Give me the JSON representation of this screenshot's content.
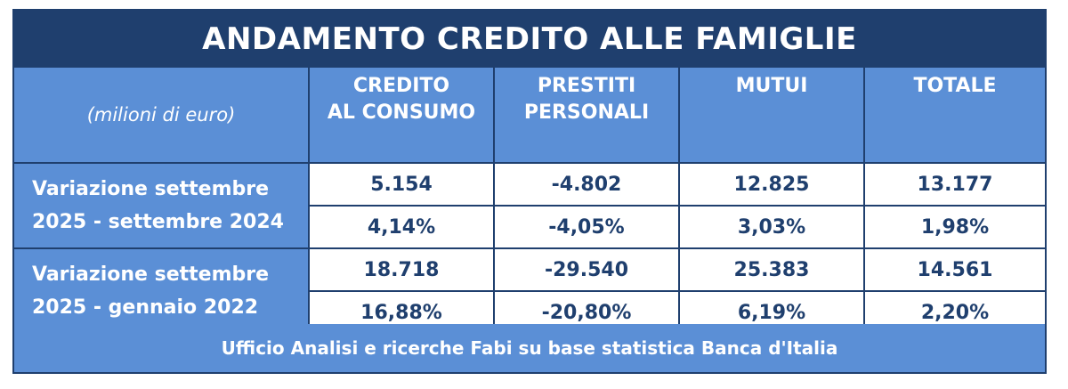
{
  "title": "ANDAMENTO CREDITO ALLE FAMIGLIE",
  "unit_label": "(milioni di euro)",
  "columns": [
    {
      "line1": "CREDITO",
      "line2": "AL CONSUMO"
    },
    {
      "line1": "PRESTITI",
      "line2": "PERSONALI"
    },
    {
      "line1": "MUTUI",
      "line2": ""
    },
    {
      "line1": "TOTALE",
      "line2": ""
    }
  ],
  "groups": [
    {
      "label_line1": "Variazione settembre",
      "label_line2": "2025 - settembre 2024",
      "values": [
        "5.154",
        "-4.802",
        "12.825",
        "13.177"
      ],
      "percents": [
        "4,14%",
        "-4,05%",
        "3,03%",
        "1,98%"
      ]
    },
    {
      "label_line1": "Variazione settembre",
      "label_line2": "2025 - gennaio 2022",
      "values": [
        "18.718",
        "-29.540",
        "25.383",
        "14.561"
      ],
      "percents": [
        "16,88%",
        "-20,80%",
        "6,19%",
        "2,20%"
      ]
    }
  ],
  "footer": "Ufficio Analisi e ricerche Fabi su base statistica Banca d'Italia",
  "colors": {
    "dark_blue": "#1f3f6e",
    "light_blue": "#5b8fd6",
    "white": "#ffffff"
  }
}
